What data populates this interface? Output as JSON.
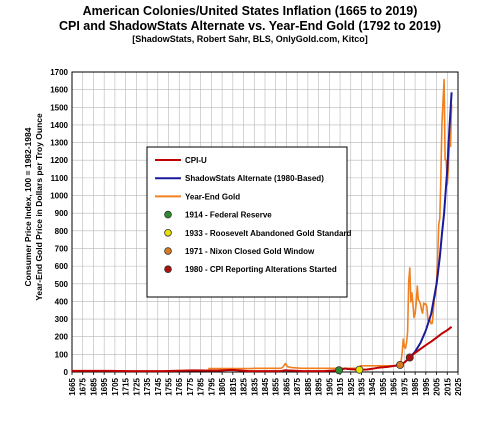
{
  "chart_data": {
    "type": "line",
    "title_line1": "American Colonies/United States Inflation (1665 to 2019)",
    "title_line2": "CPI and ShadowStats Alternate vs. Year-End Gold (1792 to 2019)",
    "subtitle": "[ShadowStats, Robert Sahr, BLS, OnlyGold.com, Kitco]",
    "ylabel_line1": "Consumer Price Index, 100 = 1982-1984",
    "ylabel_line2": "Year-End Gold Price in Dollars per Troy Ounce",
    "xlim": [
      1665,
      2025
    ],
    "ylim": [
      0,
      1700
    ],
    "x_ticks": [
      1665,
      1675,
      1685,
      1695,
      1705,
      1715,
      1725,
      1735,
      1745,
      1755,
      1765,
      1775,
      1785,
      1795,
      1805,
      1815,
      1825,
      1835,
      1845,
      1855,
      1865,
      1875,
      1885,
      1895,
      1905,
      1915,
      1925,
      1935,
      1945,
      1955,
      1965,
      1975,
      1985,
      1995,
      2005,
      2015,
      2025
    ],
    "y_ticks": [
      0,
      100,
      200,
      300,
      400,
      500,
      600,
      700,
      800,
      900,
      1000,
      1100,
      1200,
      1300,
      1400,
      1500,
      1600,
      1700
    ],
    "grid": true,
    "series": [
      {
        "name": "CPI-U",
        "color": "#c00000",
        "x": [
          1665,
          1700,
          1720,
          1750,
          1778,
          1800,
          1814,
          1830,
          1860,
          1864,
          1866,
          1880,
          1900,
          1913,
          1920,
          1922,
          1933,
          1940,
          1945,
          1950,
          1960,
          1970,
          1975,
          1980,
          1985,
          1990,
          1995,
          2000,
          2005,
          2010,
          2015,
          2019
        ],
        "y": [
          6,
          6,
          5,
          5,
          9,
          8,
          12,
          5,
          5,
          10,
          9,
          5,
          5,
          10,
          20,
          17,
          13,
          14,
          18,
          24,
          30,
          39,
          54,
          82,
          108,
          131,
          152,
          172,
          195,
          218,
          237,
          256
        ]
      },
      {
        "name": "ShadowStats Alternate (1980-Based)",
        "color": "#1a1a9c",
        "x": [
          1980,
          1985,
          1990,
          1995,
          2000,
          2005,
          2008,
          2010,
          2012,
          2015,
          2017,
          2019
        ],
        "y": [
          82,
          115,
          165,
          235,
          330,
          500,
          650,
          780,
          900,
          1150,
          1380,
          1585
        ]
      },
      {
        "name": "Year-End Gold",
        "color": "#f08020",
        "x": [
          1792,
          1833,
          1834,
          1860,
          1862,
          1864,
          1866,
          1870,
          1879,
          1900,
          1933,
          1934,
          1940,
          1960,
          1967,
          1968,
          1970,
          1971,
          1972,
          1973,
          1974,
          1975,
          1976,
          1977,
          1978,
          1979,
          1980,
          1981,
          1982,
          1983,
          1984,
          1985,
          1986,
          1987,
          1988,
          1989,
          1990,
          1991,
          1992,
          1993,
          1994,
          1995,
          1996,
          1997,
          1998,
          1999,
          2000,
          2001,
          2002,
          2003,
          2004,
          2005,
          2006,
          2007,
          2008,
          2009,
          2010,
          2011,
          2012,
          2013,
          2014,
          2015,
          2016,
          2017,
          2018,
          2019
        ],
        "y": [
          19,
          19,
          21,
          21,
          30,
          48,
          30,
          25,
          21,
          21,
          21,
          35,
          35,
          35,
          35,
          42,
          37,
          43,
          64,
          112,
          187,
          140,
          135,
          165,
          226,
          512,
          590,
          397,
          448,
          382,
          309,
          327,
          391,
          487,
          410,
          401,
          385,
          353,
          333,
          391,
          383,
          387,
          369,
          290,
          288,
          290,
          273,
          277,
          343,
          416,
          438,
          517,
          636,
          834,
          870,
          1087,
          1405,
          1531,
          1657,
          1202,
          1199,
          1061,
          1146,
          1297,
          1279,
          1515
        ]
      }
    ],
    "markers": [
      {
        "name": "1914 - Federal Reserve",
        "x": 1914,
        "y": 10,
        "color": "#2e8b2e"
      },
      {
        "name": "1933 - Roosevelt Abandoned Gold Standard",
        "x": 1933,
        "y": 13,
        "color": "#e8e000"
      },
      {
        "name": "1971 - Nixon Closed Gold Window",
        "x": 1971,
        "y": 40,
        "color": "#d97a1f"
      },
      {
        "name": "1980 - CPI Reporting Alterations Started",
        "x": 1980,
        "y": 82,
        "color": "#b01010"
      }
    ],
    "legend_position": "center-left"
  }
}
